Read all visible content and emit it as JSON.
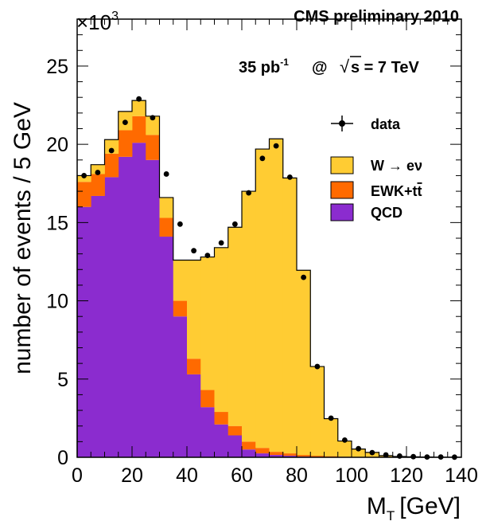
{
  "header": {
    "multiplier_base": "×10",
    "multiplier_exp": "3",
    "experiment": "CMS preliminary 2010"
  },
  "lumi": {
    "value": "35 pb",
    "exp": "-1",
    "at": "@",
    "sqrt": "√",
    "energy": "s = 7 TeV"
  },
  "legend": {
    "data": "data",
    "w": "W → eν",
    "ewk_prefix": "EWK+t",
    "ewk_tbar": "t",
    "qcd": "QCD"
  },
  "colors": {
    "qcd": "#8b2ccf",
    "ewk": "#ff6a00",
    "w": "#ffcc33",
    "data": "#000000",
    "frame": "#000000"
  },
  "chart_data": {
    "type": "bar",
    "stacked": true,
    "ylabel": "number of events / 5 GeV",
    "xlabel_main": "M",
    "xlabel_sub": "T",
    "xlabel_unit": "[GeV]",
    "xlim": [
      0,
      140
    ],
    "ylim": [
      0,
      28
    ],
    "xticks": [
      0,
      20,
      40,
      60,
      80,
      100,
      120,
      140
    ],
    "yticks": [
      0,
      5,
      10,
      15,
      20,
      25
    ],
    "bin_edges": [
      0,
      5,
      10,
      15,
      20,
      25,
      30,
      35,
      40,
      45,
      50,
      55,
      60,
      65,
      70,
      75,
      80,
      85,
      90,
      95,
      100,
      105,
      110,
      115,
      120,
      125,
      130,
      135,
      140
    ],
    "series": [
      {
        "name": "QCD",
        "values": [
          16.0,
          16.7,
          17.9,
          19.2,
          20.1,
          19.0,
          14.1,
          9.0,
          5.3,
          3.2,
          2.1,
          1.4,
          0.5,
          0.25,
          0.15,
          0.1,
          0.05,
          0.03,
          0.02,
          0.01,
          0.01,
          0.0,
          0.0,
          0.0,
          0.0,
          0.0,
          0.0,
          0.0
        ]
      },
      {
        "name": "EWK+tt̄",
        "values": [
          1.6,
          1.4,
          1.5,
          1.7,
          1.7,
          1.6,
          1.2,
          1.0,
          1.0,
          1.1,
          0.8,
          0.6,
          0.5,
          0.35,
          0.2,
          0.15,
          0.1,
          0.07,
          0.05,
          0.03,
          0.02,
          0.01,
          0.01,
          0.0,
          0.0,
          0.0,
          0.0,
          0.0
        ]
      },
      {
        "name": "W → eν",
        "values": [
          0.4,
          0.6,
          0.9,
          1.2,
          1.0,
          1.2,
          1.3,
          2.6,
          6.3,
          8.5,
          10.5,
          12.7,
          16.0,
          19.1,
          20.0,
          17.6,
          11.8,
          5.7,
          2.4,
          1.0,
          0.5,
          0.3,
          0.1,
          0.05,
          0.03,
          0.02,
          0.01,
          0.01
        ]
      }
    ],
    "data_points": {
      "x": [
        2.5,
        7.5,
        12.5,
        17.5,
        22.5,
        27.5,
        32.5,
        37.5,
        42.5,
        47.5,
        52.5,
        57.5,
        62.5,
        67.5,
        72.5,
        77.5,
        82.5,
        87.5,
        92.5,
        97.5,
        102.5,
        107.5,
        112.5,
        117.5,
        122.5,
        127.5,
        132.5,
        137.5
      ],
      "y": [
        18.0,
        18.2,
        19.6,
        21.4,
        22.9,
        21.7,
        18.1,
        14.9,
        13.2,
        12.9,
        13.7,
        14.9,
        16.9,
        19.1,
        19.9,
        17.9,
        11.5,
        5.8,
        2.5,
        1.1,
        0.55,
        0.3,
        0.15,
        0.08,
        0.04,
        0.02,
        0.02,
        0.01
      ]
    }
  }
}
